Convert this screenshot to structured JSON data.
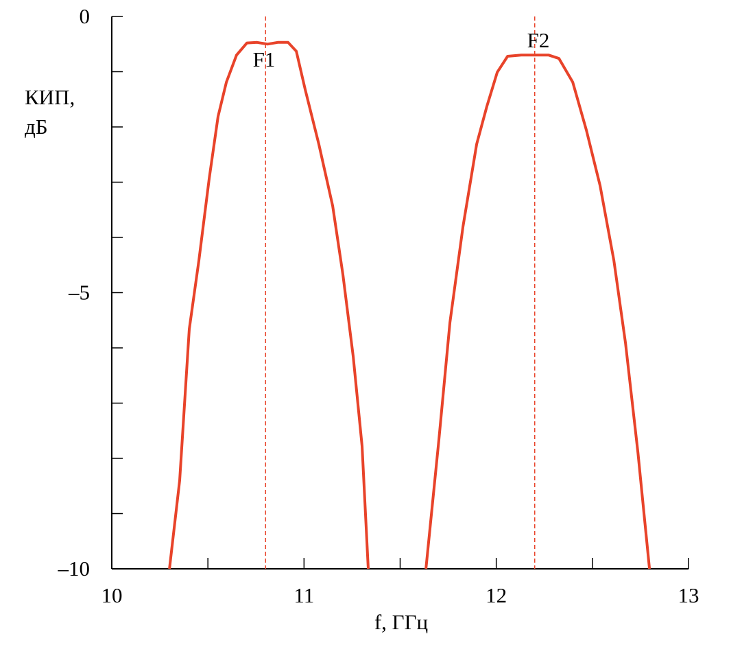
{
  "chart_data": {
    "type": "line",
    "y_label_lines": [
      "КИП,",
      "дБ"
    ],
    "x_label": "f, ГГц",
    "xlim": [
      10,
      13
    ],
    "xticks": [
      10,
      11,
      12,
      13
    ],
    "minor_xticks": [
      10.5,
      11.5,
      12.5
    ],
    "ylim": [
      -10,
      0
    ],
    "yticks": [
      0,
      {
        "value": -5,
        "label": "–5"
      },
      {
        "value": -10,
        "label": "–10"
      }
    ],
    "minor_yticks": [
      -1,
      -2,
      -3,
      -4,
      -6,
      -7,
      -8,
      -9
    ],
    "series": [
      {
        "color": "#e8432a",
        "x": [
          10.3,
          10.353,
          10.403,
          10.453,
          10.507,
          10.553,
          10.596,
          10.649,
          10.703,
          10.756,
          10.81,
          10.863,
          10.917,
          10.96,
          11.006,
          11.077,
          11.149,
          11.202,
          11.256,
          11.302,
          11.334
        ],
        "values": [
          -10,
          -8.4,
          -5.66,
          -4.42,
          -2.93,
          -1.81,
          -1.19,
          -0.7,
          -0.48,
          -0.47,
          -0.5,
          -0.47,
          -0.47,
          -0.63,
          -1.32,
          -2.31,
          -3.43,
          -4.67,
          -6.16,
          -7.78,
          -10
        ]
      },
      {
        "color": "#e8432a",
        "x": [
          11.634,
          11.702,
          11.759,
          11.827,
          11.898,
          11.951,
          12.005,
          12.059,
          12.13,
          12.201,
          12.273,
          12.326,
          12.398,
          12.469,
          12.54,
          12.612,
          12.672,
          12.737,
          12.797
        ],
        "values": [
          -10,
          -7.65,
          -5.54,
          -3.8,
          -2.31,
          -1.63,
          -1.01,
          -0.72,
          -0.7,
          -0.7,
          -0.7,
          -0.76,
          -1.19,
          -2.06,
          -3.06,
          -4.42,
          -5.91,
          -7.9,
          -10
        ]
      }
    ],
    "markers": [
      {
        "text": "F1",
        "x": 10.8
      },
      {
        "text": "F2",
        "x": 12.2
      }
    ],
    "marker_color": "#e8432a"
  }
}
